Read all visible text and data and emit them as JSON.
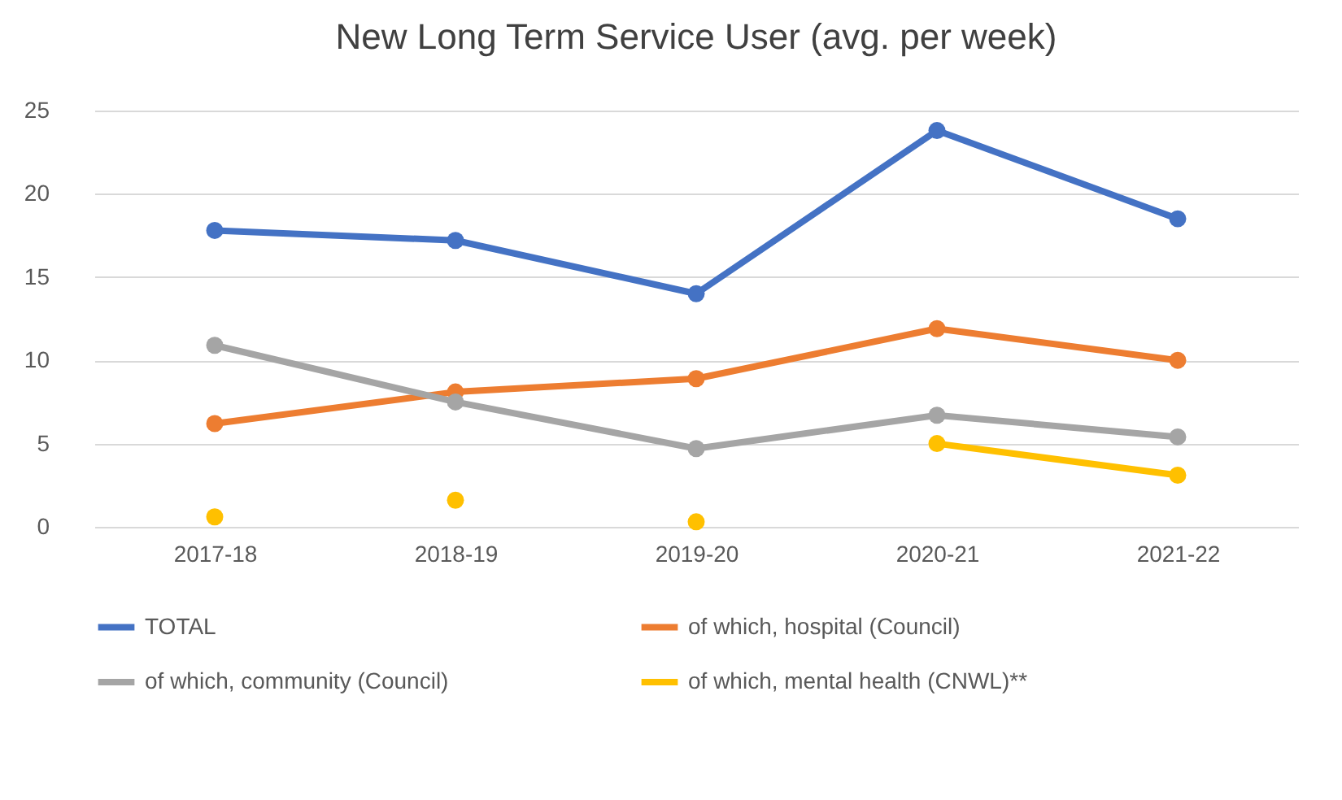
{
  "chart_data": {
    "type": "line",
    "title": "New Long Term Service User (avg. per week)",
    "categories": [
      "2017-18",
      "2018-19",
      "2019-20",
      "2020-21",
      "2021-22"
    ],
    "series": [
      {
        "name": "TOTAL",
        "color": "#4472c4",
        "values": [
          17.8,
          17.2,
          14.0,
          23.8,
          18.5
        ]
      },
      {
        "name": "of which, hospital (Council)",
        "color": "#ed7d31",
        "values": [
          6.2,
          8.1,
          8.9,
          11.9,
          10.0
        ]
      },
      {
        "name": "of which, community (Council)",
        "color": "#a5a5a5",
        "values": [
          10.9,
          7.5,
          4.7,
          6.7,
          5.4
        ]
      },
      {
        "name": "of which, mental health (CNWL)**",
        "color": "#ffc000",
        "values": [
          null,
          null,
          null,
          5.0,
          3.1
        ]
      },
      {
        "type": "scatter",
        "color": "#ffc000",
        "values": [
          0.6,
          1.6,
          0.3,
          null,
          null
        ]
      }
    ],
    "ylim": [
      0,
      25
    ],
    "yticks": [
      0,
      5,
      10,
      15,
      20,
      25
    ],
    "grid": "y",
    "legend": "bottom",
    "marker": "circle"
  }
}
